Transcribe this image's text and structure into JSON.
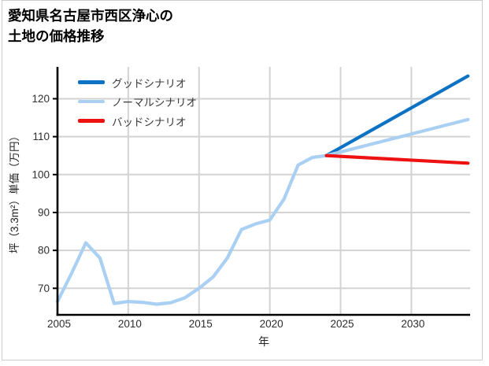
{
  "title": {
    "line1": "愛知県名古屋市西区浄心の",
    "line2": "土地の価格推移"
  },
  "axes": {
    "x_label": "年",
    "y_label": "坪（3.3m²）単価（万円）"
  },
  "legend": {
    "items": [
      {
        "label": "グッドシナリオ",
        "color_key": "good"
      },
      {
        "label": "ノーマルシナリオ",
        "color_key": "normal"
      },
      {
        "label": "バッドシナリオ",
        "color_key": "bad"
      }
    ]
  },
  "colors": {
    "good": "#0d72c4",
    "normal": "#a9d0f3",
    "bad": "#ee1111",
    "historical": "#a9d0f3",
    "grid": "#d3d3d3",
    "spine": "#000000",
    "tick_text": "#2e2e2e",
    "frame_border": "#cbcbcb"
  },
  "chart_data": {
    "type": "line",
    "title": "愛知県名古屋市西区浄心の土地の価格推移",
    "xlabel": "年",
    "ylabel": "坪（3.3m²）単価（万円）",
    "xlim": [
      2005,
      2034.15
    ],
    "ylim": [
      63.0,
      128.4
    ],
    "xticks": [
      2005,
      2010,
      2015,
      2020,
      2025,
      2030
    ],
    "yticks": [
      70,
      80,
      90,
      100,
      110,
      120
    ],
    "grid": true,
    "legend_position": "top-left",
    "unit": "万円/坪",
    "series": [
      {
        "id": "historical",
        "color_key": "historical",
        "x": [
          2005,
          2006,
          2007,
          2008,
          2009,
          2010,
          2011,
          2012,
          2013,
          2014,
          2015,
          2016,
          2017,
          2018,
          2019,
          2020,
          2021,
          2022,
          2023,
          2024
        ],
        "y": [
          66.5,
          74,
          82,
          78,
          66,
          66.5,
          66.3,
          65.8,
          66.2,
          67.5,
          70,
          73,
          78,
          85.5,
          87,
          88,
          93.5,
          102.5,
          104.5,
          105
        ]
      },
      {
        "id": "good",
        "name": "グッドシナリオ",
        "color_key": "good",
        "x": [
          2024,
          2034
        ],
        "y": [
          105,
          126
        ]
      },
      {
        "id": "normal",
        "name": "ノーマルシナリオ",
        "color_key": "normal",
        "x": [
          2024,
          2034
        ],
        "y": [
          105,
          114.5
        ]
      },
      {
        "id": "bad",
        "name": "バッドシナリオ",
        "color_key": "bad",
        "x": [
          2024,
          2034
        ],
        "y": [
          105,
          103
        ]
      }
    ]
  }
}
